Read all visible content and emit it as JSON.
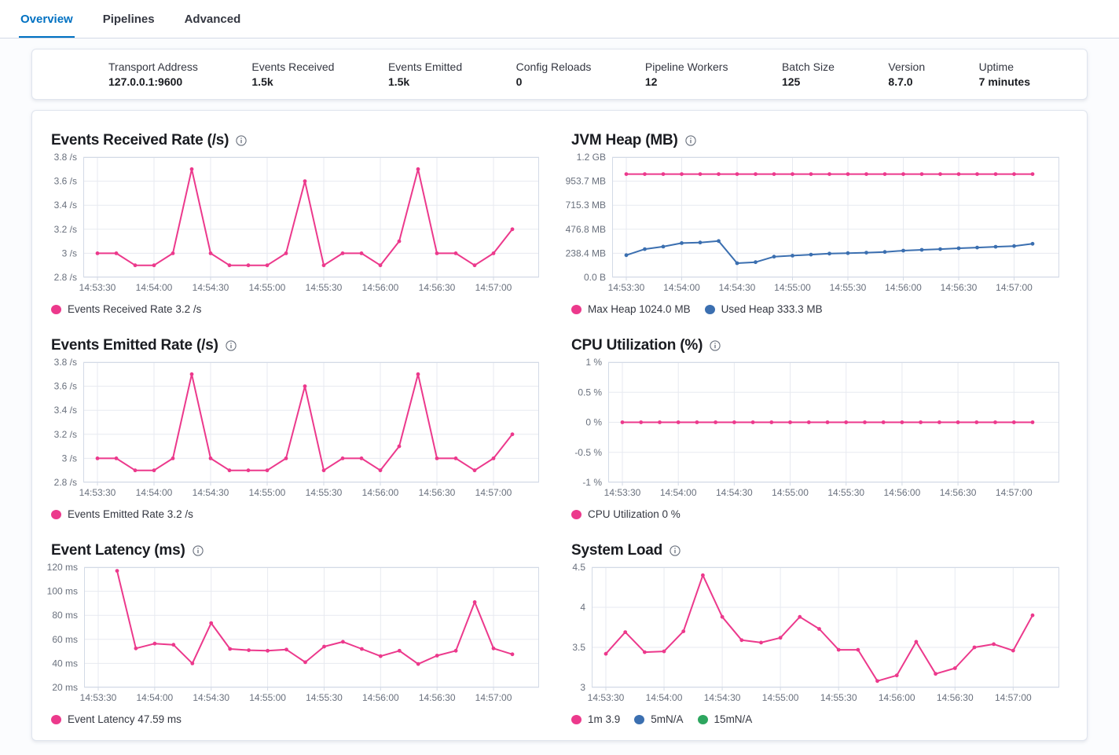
{
  "tabs": [
    {
      "label": "Overview",
      "active": true
    },
    {
      "label": "Pipelines",
      "active": false
    },
    {
      "label": "Advanced",
      "active": false
    }
  ],
  "stats": [
    {
      "label": "Transport Address",
      "value": "127.0.0.1:9600"
    },
    {
      "label": "Events Received",
      "value": "1.5k"
    },
    {
      "label": "Events Emitted",
      "value": "1.5k"
    },
    {
      "label": "Config Reloads",
      "value": "0"
    },
    {
      "label": "Pipeline Workers",
      "value": "12"
    },
    {
      "label": "Batch Size",
      "value": "125"
    },
    {
      "label": "Version",
      "value": "8.7.0"
    },
    {
      "label": "Uptime",
      "value": "7 minutes"
    }
  ],
  "colors": {
    "accent_blue": "#0071C2",
    "series_pink": "#EC398C",
    "series_blue": "#3B6FB0",
    "series_green": "#2DA65F",
    "axis_text": "#69707D"
  },
  "chart_data": [
    {
      "type": "line",
      "title": "Events Received Rate (/s)",
      "x": [
        "14:53:30",
        "14:53:40",
        "14:53:50",
        "14:54:00",
        "14:54:10",
        "14:54:20",
        "14:54:30",
        "14:54:40",
        "14:54:50",
        "14:55:00",
        "14:55:10",
        "14:55:20",
        "14:55:30",
        "14:55:40",
        "14:55:50",
        "14:56:00",
        "14:56:10",
        "14:56:20",
        "14:56:30",
        "14:56:40",
        "14:56:50",
        "14:57:00",
        "14:57:10"
      ],
      "x_tick_labels": [
        "14:53:30",
        "14:54:00",
        "14:54:30",
        "14:55:00",
        "14:55:30",
        "14:56:00",
        "14:56:30",
        "14:57:00"
      ],
      "ylim": [
        2.8,
        3.8
      ],
      "y_ticks": [
        {
          "label": "3.8 /s",
          "value": 3.8
        },
        {
          "label": "3.6 /s",
          "value": 3.6
        },
        {
          "label": "3.4 /s",
          "value": 3.4
        },
        {
          "label": "3.2 /s",
          "value": 3.2
        },
        {
          "label": "3 /s",
          "value": 3.0
        },
        {
          "label": "2.8 /s",
          "value": 2.8
        }
      ],
      "series": [
        {
          "name": "Events Received Rate",
          "color": "#EC398C",
          "values": [
            3.0,
            3.0,
            2.9,
            2.9,
            3.0,
            3.7,
            3.0,
            2.9,
            2.9,
            2.9,
            3.0,
            3.6,
            2.9,
            3.0,
            3.0,
            2.9,
            3.1,
            3.7,
            3.0,
            3.0,
            2.9,
            3.0,
            3.2
          ]
        }
      ],
      "legend": [
        {
          "color": "#EC398C",
          "label": "Events Received Rate 3.2 /s"
        }
      ]
    },
    {
      "type": "line",
      "title": "JVM Heap (MB)",
      "x": [
        "14:53:30",
        "14:53:40",
        "14:53:50",
        "14:54:00",
        "14:54:10",
        "14:54:20",
        "14:54:30",
        "14:54:40",
        "14:54:50",
        "14:55:00",
        "14:55:10",
        "14:55:20",
        "14:55:30",
        "14:55:40",
        "14:55:50",
        "14:56:00",
        "14:56:10",
        "14:56:20",
        "14:56:30",
        "14:56:40",
        "14:56:50",
        "14:57:00",
        "14:57:10"
      ],
      "x_tick_labels": [
        "14:53:30",
        "14:54:00",
        "14:54:30",
        "14:55:00",
        "14:55:30",
        "14:56:00",
        "14:56:30",
        "14:57:00"
      ],
      "ylim": [
        0,
        1192.1
      ],
      "y_ticks": [
        {
          "label": "1.2 GB",
          "value": 1192.1
        },
        {
          "label": "953.7 MB",
          "value": 953.7
        },
        {
          "label": "715.3 MB",
          "value": 715.3
        },
        {
          "label": "476.8 MB",
          "value": 476.8
        },
        {
          "label": "238.4 MB",
          "value": 238.4
        },
        {
          "label": "0.0 B",
          "value": 0
        }
      ],
      "series": [
        {
          "name": "Max Heap",
          "color": "#EC398C",
          "values": [
            1024,
            1024,
            1024,
            1024,
            1024,
            1024,
            1024,
            1024,
            1024,
            1024,
            1024,
            1024,
            1024,
            1024,
            1024,
            1024,
            1024,
            1024,
            1024,
            1024,
            1024,
            1024,
            1024
          ]
        },
        {
          "name": "Used Heap",
          "color": "#3B6FB0",
          "values": [
            220,
            280,
            305,
            340,
            345,
            360,
            140,
            150,
            205,
            215,
            225,
            235,
            240,
            245,
            252,
            265,
            273,
            280,
            288,
            295,
            303,
            310,
            333
          ]
        }
      ],
      "legend": [
        {
          "color": "#EC398C",
          "label": "Max Heap 1024.0 MB"
        },
        {
          "color": "#3B6FB0",
          "label": "Used Heap 333.3 MB"
        }
      ]
    },
    {
      "type": "line",
      "title": "Events Emitted Rate (/s)",
      "x": [
        "14:53:30",
        "14:53:40",
        "14:53:50",
        "14:54:00",
        "14:54:10",
        "14:54:20",
        "14:54:30",
        "14:54:40",
        "14:54:50",
        "14:55:00",
        "14:55:10",
        "14:55:20",
        "14:55:30",
        "14:55:40",
        "14:55:50",
        "14:56:00",
        "14:56:10",
        "14:56:20",
        "14:56:30",
        "14:56:40",
        "14:56:50",
        "14:57:00",
        "14:57:10"
      ],
      "x_tick_labels": [
        "14:53:30",
        "14:54:00",
        "14:54:30",
        "14:55:00",
        "14:55:30",
        "14:56:00",
        "14:56:30",
        "14:57:00"
      ],
      "ylim": [
        2.8,
        3.8
      ],
      "y_ticks": [
        {
          "label": "3.8 /s",
          "value": 3.8
        },
        {
          "label": "3.6 /s",
          "value": 3.6
        },
        {
          "label": "3.4 /s",
          "value": 3.4
        },
        {
          "label": "3.2 /s",
          "value": 3.2
        },
        {
          "label": "3 /s",
          "value": 3.0
        },
        {
          "label": "2.8 /s",
          "value": 2.8
        }
      ],
      "series": [
        {
          "name": "Events Emitted Rate",
          "color": "#EC398C",
          "values": [
            3.0,
            3.0,
            2.9,
            2.9,
            3.0,
            3.7,
            3.0,
            2.9,
            2.9,
            2.9,
            3.0,
            3.6,
            2.9,
            3.0,
            3.0,
            2.9,
            3.1,
            3.7,
            3.0,
            3.0,
            2.9,
            3.0,
            3.2
          ]
        }
      ],
      "legend": [
        {
          "color": "#EC398C",
          "label": "Events Emitted Rate 3.2 /s"
        }
      ]
    },
    {
      "type": "line",
      "title": "CPU Utilization (%)",
      "x": [
        "14:53:30",
        "14:53:40",
        "14:53:50",
        "14:54:00",
        "14:54:10",
        "14:54:20",
        "14:54:30",
        "14:54:40",
        "14:54:50",
        "14:55:00",
        "14:55:10",
        "14:55:20",
        "14:55:30",
        "14:55:40",
        "14:55:50",
        "14:56:00",
        "14:56:10",
        "14:56:20",
        "14:56:30",
        "14:56:40",
        "14:56:50",
        "14:57:00",
        "14:57:10"
      ],
      "x_tick_labels": [
        "14:53:30",
        "14:54:00",
        "14:54:30",
        "14:55:00",
        "14:55:30",
        "14:56:00",
        "14:56:30",
        "14:57:00"
      ],
      "ylim": [
        -1,
        1
      ],
      "y_ticks": [
        {
          "label": "1 %",
          "value": 1
        },
        {
          "label": "0.5 %",
          "value": 0.5
        },
        {
          "label": "0 %",
          "value": 0
        },
        {
          "label": "-0.5 %",
          "value": -0.5
        },
        {
          "label": "-1 %",
          "value": -1
        }
      ],
      "series": [
        {
          "name": "CPU Utilization",
          "color": "#EC398C",
          "values": [
            0,
            0,
            0,
            0,
            0,
            0,
            0,
            0,
            0,
            0,
            0,
            0,
            0,
            0,
            0,
            0,
            0,
            0,
            0,
            0,
            0,
            0,
            0
          ]
        }
      ],
      "legend": [
        {
          "color": "#EC398C",
          "label": "CPU Utilization 0 %"
        }
      ]
    },
    {
      "type": "line",
      "title": "Event Latency (ms)",
      "x": [
        "14:53:30",
        "14:53:40",
        "14:53:50",
        "14:54:00",
        "14:54:10",
        "14:54:20",
        "14:54:30",
        "14:54:40",
        "14:54:50",
        "14:55:00",
        "14:55:10",
        "14:55:20",
        "14:55:30",
        "14:55:40",
        "14:55:50",
        "14:56:00",
        "14:56:10",
        "14:56:20",
        "14:56:30",
        "14:56:40",
        "14:56:50",
        "14:57:00",
        "14:57:10"
      ],
      "x_tick_labels": [
        "14:53:30",
        "14:54:00",
        "14:54:30",
        "14:55:00",
        "14:55:30",
        "14:56:00",
        "14:56:30",
        "14:57:00"
      ],
      "ylim": [
        20,
        120
      ],
      "y_ticks": [
        {
          "label": "120 ms",
          "value": 120
        },
        {
          "label": "100 ms",
          "value": 100
        },
        {
          "label": "80 ms",
          "value": 80
        },
        {
          "label": "60 ms",
          "value": 60
        },
        {
          "label": "40 ms",
          "value": 40
        },
        {
          "label": "20 ms",
          "value": 20
        }
      ],
      "series": [
        {
          "name": "Event Latency",
          "color": "#EC398C",
          "values": [
            null,
            117,
            52.5,
            56.5,
            55.5,
            40,
            73.5,
            52,
            51,
            50.5,
            51.5,
            41,
            54,
            58,
            52,
            46,
            50.5,
            39.5,
            46.5,
            50.5,
            91,
            52.5,
            47.59
          ]
        }
      ],
      "legend": [
        {
          "color": "#EC398C",
          "label": "Event Latency 47.59 ms"
        }
      ]
    },
    {
      "type": "line",
      "title": "System Load",
      "x": [
        "14:53:30",
        "14:53:40",
        "14:53:50",
        "14:54:00",
        "14:54:10",
        "14:54:20",
        "14:54:30",
        "14:54:40",
        "14:54:50",
        "14:55:00",
        "14:55:10",
        "14:55:20",
        "14:55:30",
        "14:55:40",
        "14:55:50",
        "14:56:00",
        "14:56:10",
        "14:56:20",
        "14:56:30",
        "14:56:40",
        "14:56:50",
        "14:57:00",
        "14:57:10"
      ],
      "x_tick_labels": [
        "14:53:30",
        "14:54:00",
        "14:54:30",
        "14:55:00",
        "14:55:30",
        "14:56:00",
        "14:56:30",
        "14:57:00"
      ],
      "ylim": [
        3,
        4.5
      ],
      "y_ticks": [
        {
          "label": "4.5",
          "value": 4.5
        },
        {
          "label": "4",
          "value": 4
        },
        {
          "label": "3.5",
          "value": 3.5
        },
        {
          "label": "3",
          "value": 3
        }
      ],
      "series": [
        {
          "name": "1m",
          "color": "#EC398C",
          "values": [
            3.42,
            3.69,
            3.44,
            3.45,
            3.7,
            4.4,
            3.88,
            3.59,
            3.56,
            3.62,
            3.88,
            3.73,
            3.47,
            3.47,
            3.08,
            3.15,
            3.57,
            3.17,
            3.24,
            3.5,
            3.54,
            3.46,
            3.9
          ]
        }
      ],
      "legend": [
        {
          "color": "#EC398C",
          "label": "1m 3.9"
        },
        {
          "color": "#3B6FB0",
          "label": "5mN/A"
        },
        {
          "color": "#2DA65F",
          "label": "15mN/A"
        }
      ]
    }
  ]
}
